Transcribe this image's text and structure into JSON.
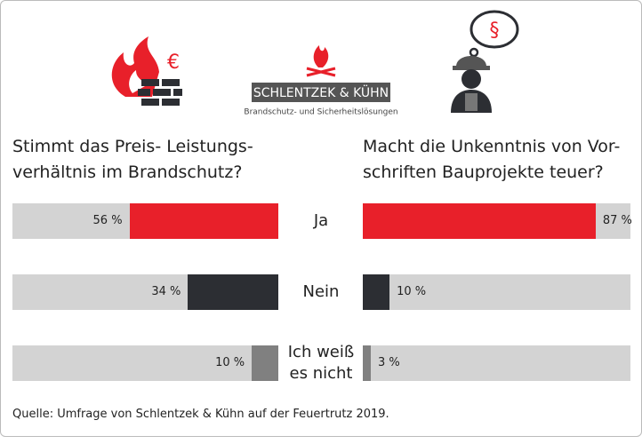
{
  "logo": {
    "name": "SCHLENTZEK & KÜHN",
    "tagline": "Brandschutz- und Sicherheitslösungen"
  },
  "chart_data": [
    {
      "type": "bar",
      "direction": "left",
      "title": "Stimmt das Preis- Leistungs-verhältnis im Brandschutz?",
      "categories": [
        "Ja",
        "Nein",
        "Ich weiß es nicht"
      ],
      "values": [
        56,
        34,
        10
      ],
      "value_labels": [
        "56 %",
        "34 %",
        "10 %"
      ],
      "colors": [
        "#e8202a",
        "#2c2e33",
        "#808080"
      ],
      "track_color": "#d3d3d3",
      "xlim": [
        0,
        100
      ]
    },
    {
      "type": "bar",
      "direction": "right",
      "title": "Macht die Unkenntnis von Vor-schriften Bauprojekte teuer?",
      "values": [
        87,
        10,
        3
      ],
      "value_labels": [
        "87 %",
        "10 %",
        "3 %"
      ],
      "colors": [
        "#e8202a",
        "#2c2e33",
        "#808080"
      ],
      "track_color": "#d3d3d3",
      "xlim": [
        0,
        100
      ]
    }
  ],
  "source": "Quelle: Umfrage von Schlentzek & Kühn auf der Feuertrutz 2019."
}
